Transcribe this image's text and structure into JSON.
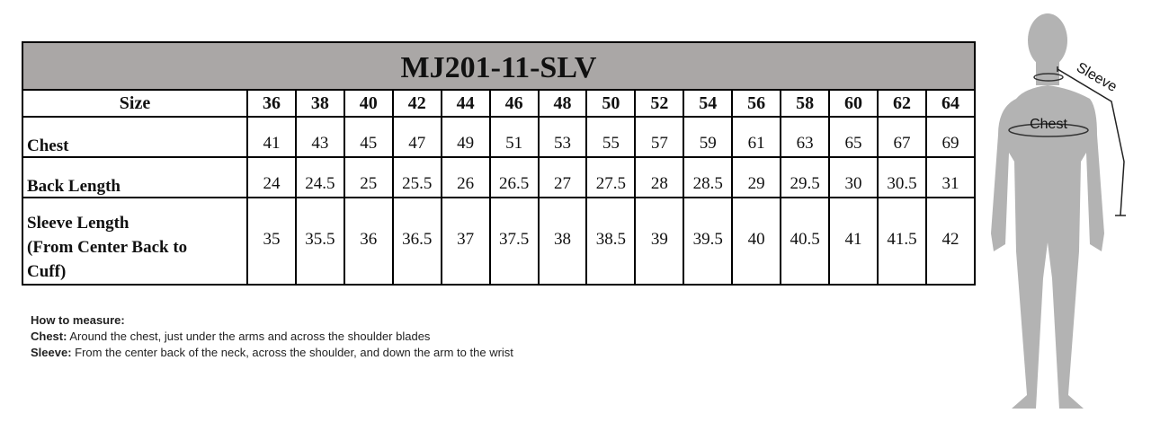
{
  "title": "MJ201-11-SLV",
  "header_label": "Size",
  "sizes": [
    "36",
    "38",
    "40",
    "42",
    "44",
    "46",
    "48",
    "50",
    "52",
    "54",
    "56",
    "58",
    "60",
    "62",
    "64"
  ],
  "rows": [
    {
      "label": "Chest",
      "values": [
        "41",
        "43",
        "45",
        "47",
        "49",
        "51",
        "53",
        "55",
        "57",
        "59",
        "61",
        "63",
        "65",
        "67",
        "69"
      ]
    },
    {
      "label": "Back Length",
      "values": [
        "24",
        "24.5",
        "25",
        "25.5",
        "26",
        "26.5",
        "27",
        "27.5",
        "28",
        "28.5",
        "29",
        "29.5",
        "30",
        "30.5",
        "31"
      ]
    },
    {
      "label_lines": [
        "Sleeve Length",
        "(From Center Back to",
        "Cuff)"
      ],
      "values": [
        "35",
        "35.5",
        "36",
        "36.5",
        "37",
        "37.5",
        "38",
        "38.5",
        "39",
        "39.5",
        "40",
        "40.5",
        "41",
        "41.5",
        "42"
      ]
    }
  ],
  "notes": {
    "heading": "How to measure:",
    "chest_term": "Chest:",
    "chest_text": " Around the chest, just under the arms and across the shoulder blades",
    "sleeve_term": "Sleeve:",
    "sleeve_text": " From the center back of the neck, across the shoulder, and down the arm to the wrist"
  },
  "figure": {
    "chest_label": "Chest",
    "sleeve_label": "Sleeve"
  },
  "colors": {
    "title_bg": "#aaa7a6",
    "figure": "#b3b3b3"
  }
}
